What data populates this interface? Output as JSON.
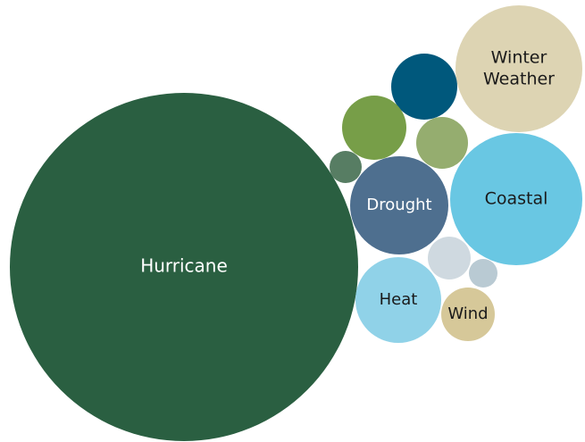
{
  "chart_data": {
    "type": "bubble",
    "title": "",
    "bubbles": [
      {
        "label": "Hurricane",
        "color": "#2a5f41",
        "text_color": "#ffffff"
      },
      {
        "label": "Winter Weather",
        "label_lines": [
          "Winter",
          "Weather"
        ],
        "color": "#ddd4b3",
        "text_color": "#1a1a1a"
      },
      {
        "label": "Coastal",
        "color": "#69c7e3",
        "text_color": "#1a1a1a"
      },
      {
        "label": "Drought",
        "color": "#4e6f8f",
        "text_color": "#ffffff"
      },
      {
        "label": "Heat",
        "color": "#90d2e8",
        "text_color": "#1a1a1a"
      },
      {
        "label": "Wind",
        "color": "#d6c899",
        "text_color": "#1a1a1a"
      },
      {
        "label": "",
        "color": "#00587c"
      },
      {
        "label": "",
        "color": "#779e48"
      },
      {
        "label": "",
        "color": "#95ad6f"
      },
      {
        "label": "",
        "color": "#577d63"
      },
      {
        "label": "",
        "color": "#cfd9e0"
      },
      {
        "label": "",
        "color": "#b9cad3"
      }
    ]
  }
}
